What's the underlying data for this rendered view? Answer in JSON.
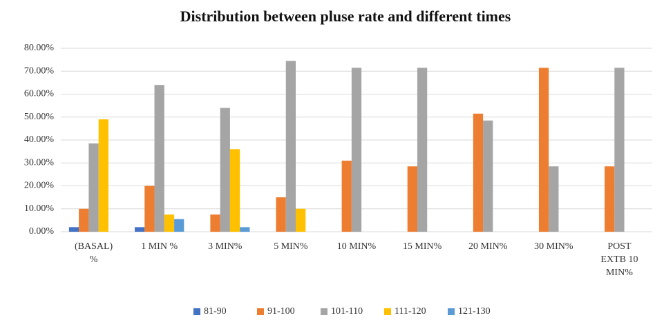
{
  "chart_data": {
    "type": "bar",
    "title": "Distribution between pluse rate and different times",
    "categories": [
      "(BASAL) %",
      "1 MIN %",
      "3 MIN%",
      "5 MIN%",
      "10 MIN%",
      "15 MIN%",
      "20 MIN%",
      "30 MIN%",
      "POST EXTB 10 MIN%"
    ],
    "series": [
      {
        "name": "81-90",
        "color": "#4472c4",
        "values": [
          2,
          2,
          0,
          0,
          0,
          0,
          0,
          0,
          0
        ]
      },
      {
        "name": "91-100",
        "color": "#ed7d31",
        "values": [
          10,
          20,
          7.5,
          15,
          31,
          28.5,
          51.5,
          71.5,
          28.5
        ]
      },
      {
        "name": "101-110",
        "color": "#a5a5a5",
        "values": [
          38.5,
          64,
          54,
          74.5,
          71.5,
          71.5,
          48.5,
          28.5,
          71.5
        ]
      },
      {
        "name": "111-120",
        "color": "#ffc000",
        "values": [
          49,
          7.5,
          36,
          10,
          0,
          0,
          0,
          0,
          0
        ]
      },
      {
        "name": "121-130",
        "color": "#5b9bd5",
        "values": [
          0,
          5.5,
          2,
          0,
          0,
          0,
          0,
          0,
          0
        ]
      }
    ],
    "ylim": [
      0,
      80
    ],
    "yticks": [
      {
        "value": 0,
        "label": "0.00%"
      },
      {
        "value": 10,
        "label": "10.00%"
      },
      {
        "value": 20,
        "label": "20.00%"
      },
      {
        "value": 30,
        "label": "30.00%"
      },
      {
        "value": 40,
        "label": "40.00%"
      },
      {
        "value": 50,
        "label": "50.00%"
      },
      {
        "value": 60,
        "label": "60.00%"
      },
      {
        "value": 70,
        "label": "70.00%"
      },
      {
        "value": 80,
        "label": "80.00%"
      }
    ],
    "grid": true,
    "legend": "bottom"
  }
}
